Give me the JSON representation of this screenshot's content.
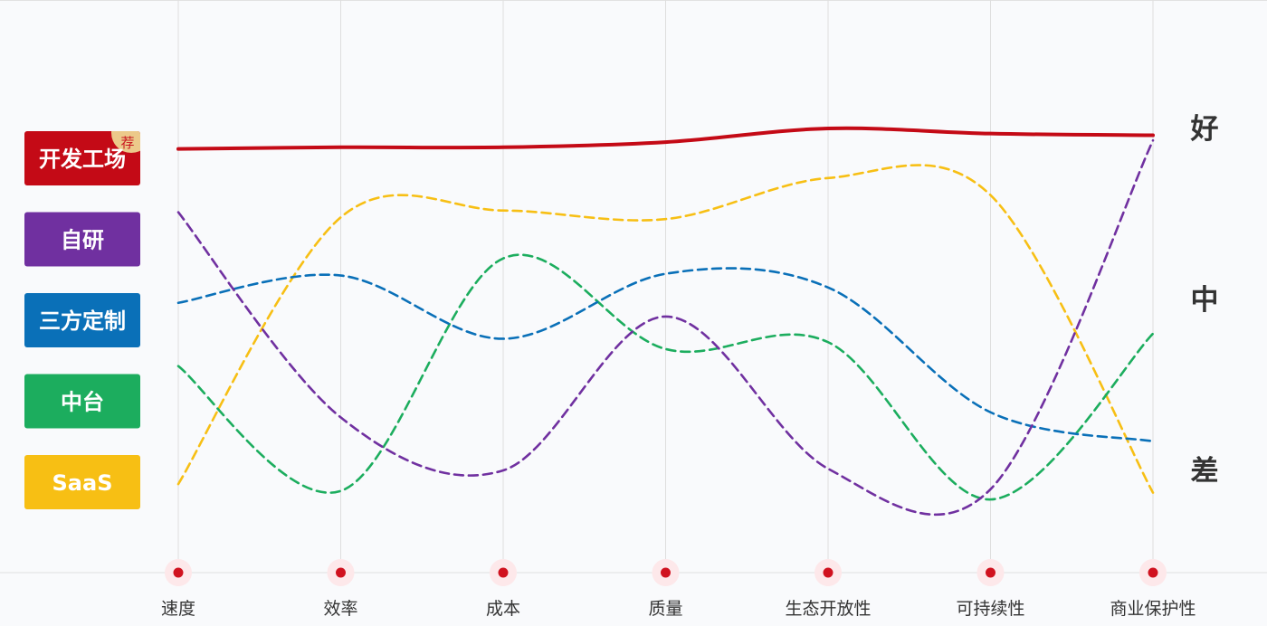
{
  "chart_data": {
    "type": "line",
    "categories": [
      "速度",
      "效率",
      "成本",
      "质量",
      "生态开放性",
      "可持续性",
      "商业保护性"
    ],
    "ylim": [
      0.3,
      3.5
    ],
    "yticks": [
      {
        "value": 3,
        "label": "好"
      },
      {
        "value": 2,
        "label": "中"
      },
      {
        "value": 1,
        "label": "差"
      }
    ],
    "series": [
      {
        "name": "开发工场",
        "color": "#c40a16",
        "dashed": false,
        "badge": "荐",
        "values": [
          2.88,
          2.89,
          2.89,
          2.92,
          3.0,
          2.97,
          2.96
        ]
      },
      {
        "name": "自研",
        "color": "#7030a0",
        "dashed": true,
        "values": [
          2.51,
          1.31,
          1.0,
          1.9,
          1.01,
          0.89,
          2.93
        ]
      },
      {
        "name": "三方定制",
        "color": "#0a70b8",
        "dashed": true,
        "values": [
          1.98,
          2.14,
          1.77,
          2.15,
          2.07,
          1.34,
          1.17
        ]
      },
      {
        "name": "中台",
        "color": "#1cad5e",
        "dashed": true,
        "values": [
          1.61,
          0.88,
          2.24,
          1.71,
          1.75,
          0.83,
          1.8
        ]
      },
      {
        "name": "SaaS",
        "color": "#f7bf14",
        "dashed": true,
        "values": [
          0.92,
          2.48,
          2.52,
          2.47,
          2.71,
          2.61,
          0.87
        ]
      }
    ]
  }
}
